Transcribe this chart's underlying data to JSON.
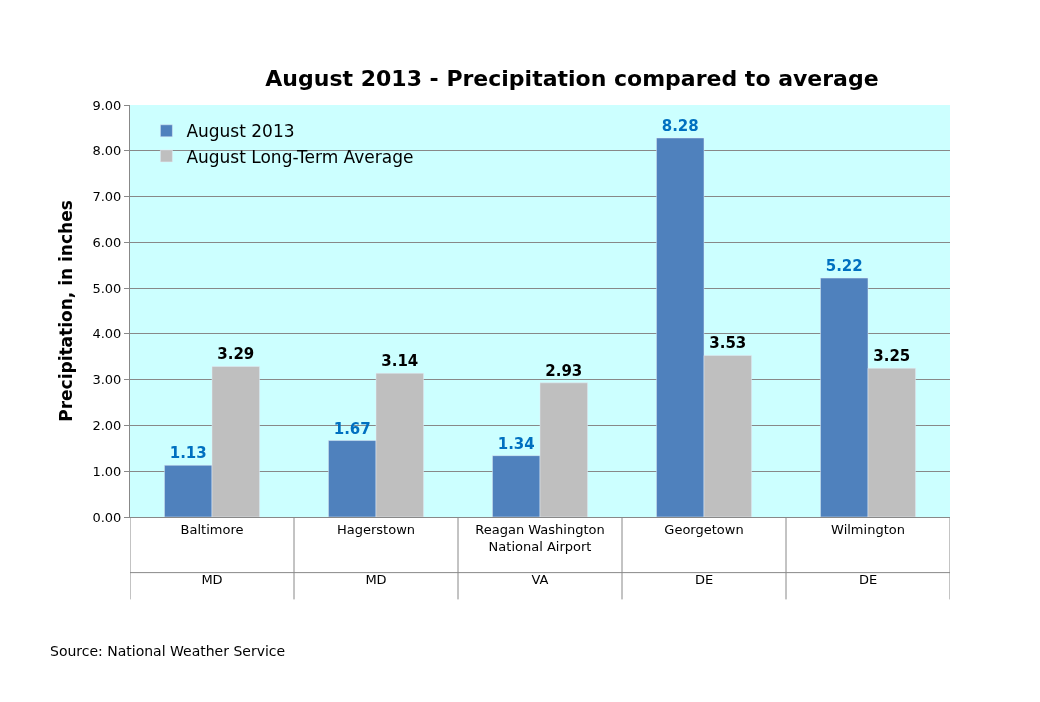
{
  "chart_data": {
    "type": "bar",
    "title": "August 2013 - Precipitation compared to average",
    "ylabel": "Precipitation, in inches",
    "categories": [
      "Baltimore\nMD",
      "Hagerstown\nMD",
      "Reagan Washington\nNational Airport\nVA",
      "Georgetown\nDE",
      "Wilmington\nDE"
    ],
    "series": [
      {
        "name": "August 2013",
        "color": "#4f81bd",
        "values": [
          1.13,
          1.67,
          1.34,
          8.28,
          5.22
        ]
      },
      {
        "name": "August Long-Term Average",
        "color": "#bfbfbf",
        "values": [
          3.29,
          3.14,
          2.93,
          3.53,
          3.25
        ]
      }
    ],
    "ylim": [
      0,
      9
    ],
    "yticks": [
      {
        "value": 0,
        "label": "0.00"
      },
      {
        "value": 1,
        "label": "1.00"
      },
      {
        "value": 2,
        "label": "2.00"
      },
      {
        "value": 3,
        "label": "3.00"
      },
      {
        "value": 4,
        "label": "4.00"
      },
      {
        "value": 5,
        "label": "5.00"
      },
      {
        "value": 6,
        "label": "6.00"
      },
      {
        "value": 7,
        "label": "7.00"
      },
      {
        "value": 8,
        "label": "8.00"
      },
      {
        "value": 9,
        "label": "9.00"
      }
    ],
    "grid": "y",
    "legend": "top left",
    "data_labels": true,
    "annotations": [
      "Source: National Weather Service"
    ]
  }
}
